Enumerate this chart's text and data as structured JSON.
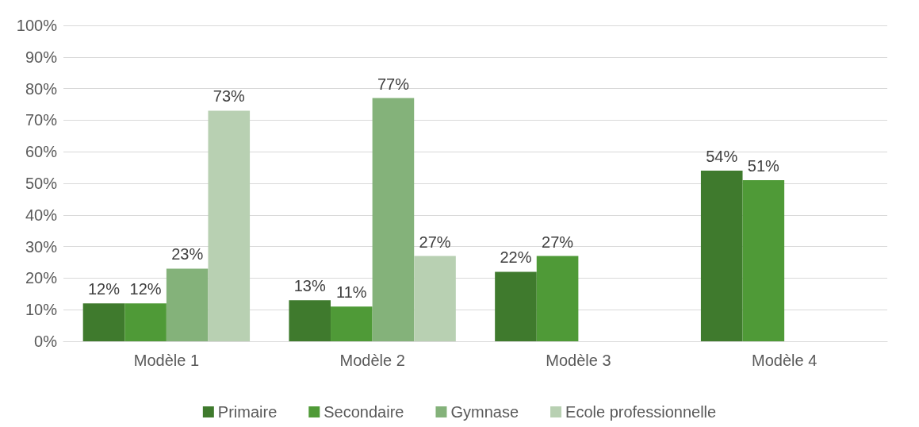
{
  "chart_data": {
    "type": "bar",
    "categories": [
      "Modèle 1",
      "Modèle 2",
      "Modèle 3",
      "Modèle 4"
    ],
    "series": [
      {
        "name": "Primaire",
        "color": "#3f7a2d",
        "values": [
          12,
          13,
          22,
          54
        ],
        "value_labels": [
          "12%",
          "13%",
          "22%",
          "54%"
        ]
      },
      {
        "name": "Secondaire",
        "color": "#4f9a37",
        "values": [
          12,
          11,
          27,
          51
        ],
        "value_labels": [
          "12%",
          "11%",
          "27%",
          "51%"
        ]
      },
      {
        "name": "Gymnase",
        "color": "#84b27a",
        "values": [
          23,
          77,
          null,
          null
        ],
        "value_labels": [
          "23%",
          "77%",
          null,
          null
        ]
      },
      {
        "name": "Ecole professionnelle",
        "color": "#b8d0b2",
        "values": [
          73,
          27,
          null,
          null
        ],
        "value_labels": [
          "73%",
          "27%",
          null,
          null
        ]
      }
    ],
    "ylim": [
      0,
      100
    ],
    "yticks": [
      {
        "value": 0,
        "label": "0%"
      },
      {
        "value": 10,
        "label": "10%"
      },
      {
        "value": 20,
        "label": "20%"
      },
      {
        "value": 30,
        "label": "30%"
      },
      {
        "value": 40,
        "label": "40%"
      },
      {
        "value": 50,
        "label": "50%"
      },
      {
        "value": 60,
        "label": "60%"
      },
      {
        "value": 70,
        "label": "70%"
      },
      {
        "value": 80,
        "label": "80%"
      },
      {
        "value": 90,
        "label": "90%"
      },
      {
        "value": 100,
        "label": "100%"
      }
    ],
    "grid": "y",
    "legend": "bottom"
  }
}
